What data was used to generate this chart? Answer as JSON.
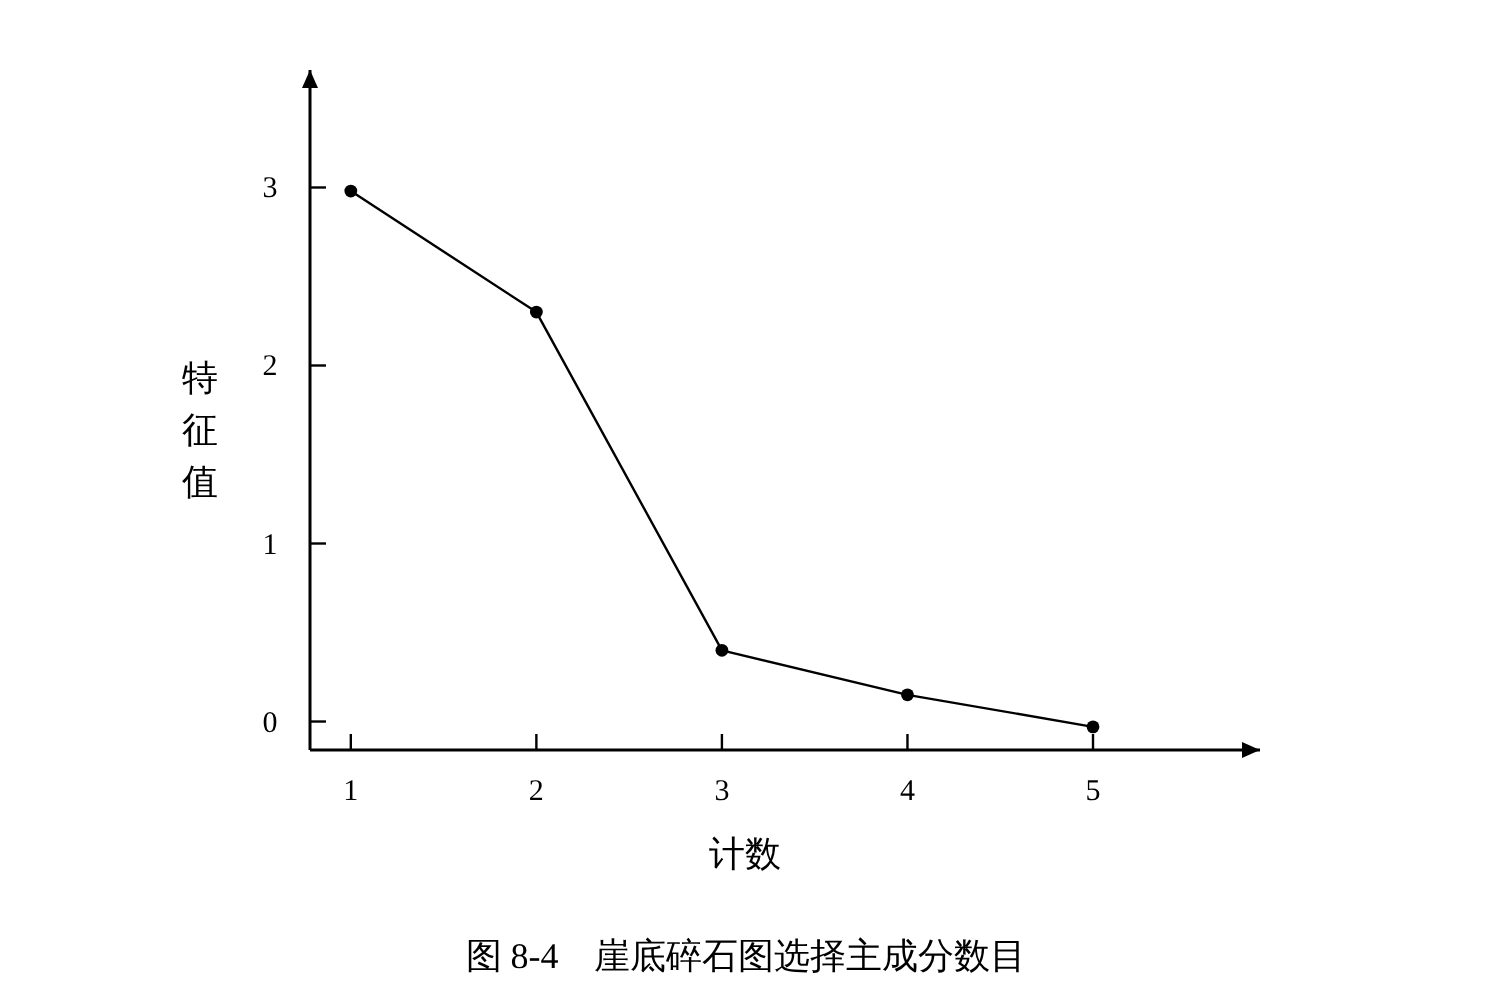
{
  "chart_data": {
    "type": "line",
    "xlabel": "计数",
    "ylabel": "特征值",
    "x": [
      1,
      2,
      3,
      4,
      5
    ],
    "series": [
      {
        "color": "#000000",
        "values": [
          2.98,
          2.3,
          0.4,
          0.15,
          -0.03
        ]
      }
    ],
    "xlim": [
      0.78,
      5.9
    ],
    "ylim": [
      -0.16,
      3.66
    ],
    "xticks": [
      1,
      2,
      3,
      4,
      5
    ],
    "yticks": [
      0,
      1,
      2,
      3
    ],
    "marker": "circle",
    "grid": false,
    "annotations": [
      "图 8-4　崖底碎石图选择主成分数目"
    ]
  }
}
